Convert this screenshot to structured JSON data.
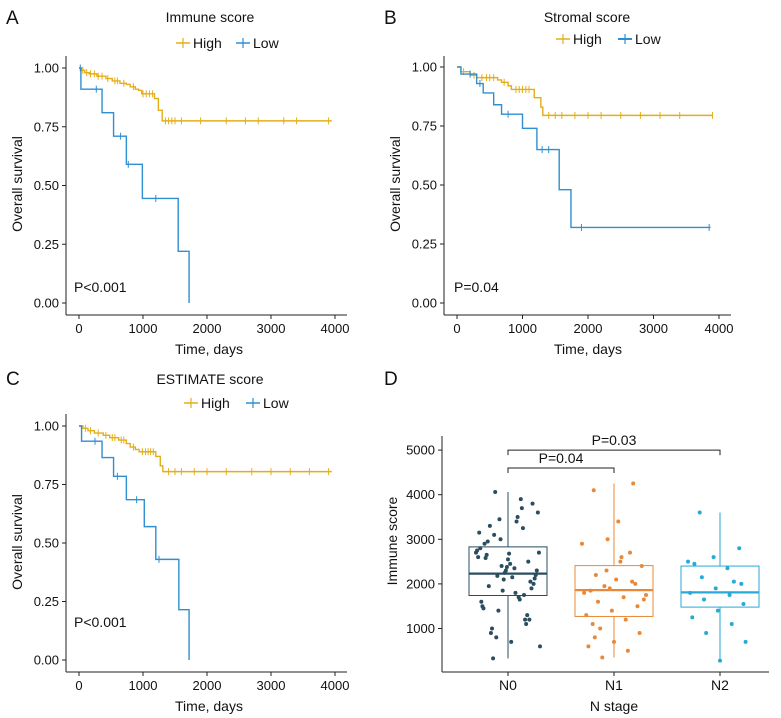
{
  "colors": {
    "high": "#e5ad19",
    "low": "#2f8fd1",
    "n0": "#2a4d5f",
    "n1": "#e8893a",
    "n2": "#28a9d6",
    "axis": "#222222"
  },
  "legend_labels": {
    "high": "High",
    "low": "Low"
  },
  "chart_data": [
    {
      "panel": "A",
      "type": "line",
      "title": "Immune score",
      "xlabel": "Time, days",
      "ylabel": "Overall survival",
      "xlim": [
        0,
        4000
      ],
      "ylim": [
        0,
        1
      ],
      "x_ticks": [
        0,
        1000,
        2000,
        3000,
        4000
      ],
      "x_tick_labels": [
        "0",
        "1000",
        "2000",
        "3000",
        "4000"
      ],
      "y_ticks": [
        0,
        0.25,
        0.5,
        0.75,
        1
      ],
      "y_tick_labels": [
        "0.00",
        "0.25",
        "0.50",
        "0.75",
        "1.00"
      ],
      "annotation": "P<0.001",
      "series": [
        {
          "name": "High",
          "steps": [
            [
              0,
              1
            ],
            [
              40,
              0.99
            ],
            [
              90,
              0.98
            ],
            [
              160,
              0.975
            ],
            [
              280,
              0.965
            ],
            [
              420,
              0.955
            ],
            [
              520,
              0.945
            ],
            [
              640,
              0.935
            ],
            [
              740,
              0.93
            ],
            [
              800,
              0.92
            ],
            [
              880,
              0.91
            ],
            [
              930,
              0.905
            ],
            [
              980,
              0.89
            ],
            [
              1180,
              0.87
            ],
            [
              1240,
              0.82
            ],
            [
              1300,
              0.775
            ],
            [
              3950,
              0.775
            ]
          ],
          "censor_x": [
            60,
            120,
            180,
            240,
            300,
            360,
            450,
            560,
            600,
            700,
            850,
            1000,
            1050,
            1100,
            1150,
            1350,
            1400,
            1450,
            1500,
            1600,
            1900,
            2300,
            2600,
            2800,
            3200,
            3400,
            3900
          ]
        },
        {
          "name": "Low",
          "steps": [
            [
              0,
              1
            ],
            [
              30,
              0.91
            ],
            [
              360,
              0.81
            ],
            [
              540,
              0.71
            ],
            [
              740,
              0.59
            ],
            [
              990,
              0.445
            ],
            [
              1550,
              0.22
            ],
            [
              1720,
              0.0
            ]
          ],
          "censor_x": [
            20,
            270,
            650,
            770,
            1200
          ]
        }
      ]
    },
    {
      "panel": "B",
      "type": "line",
      "title": "Stromal score",
      "xlabel": "Time, days",
      "ylabel": "Overall survival",
      "xlim": [
        0,
        4000
      ],
      "ylim": [
        0,
        1
      ],
      "x_ticks": [
        0,
        1000,
        2000,
        3000,
        4000
      ],
      "x_tick_labels": [
        "0",
        "1000",
        "2000",
        "3000",
        "4000"
      ],
      "y_ticks": [
        0,
        0.25,
        0.5,
        0.75,
        1
      ],
      "y_tick_labels": [
        "0.00",
        "0.25",
        "0.50",
        "0.75",
        "1.00"
      ],
      "annotation": "P=0.04",
      "series": [
        {
          "name": "High",
          "steps": [
            [
              0,
              1
            ],
            [
              60,
              0.98
            ],
            [
              200,
              0.965
            ],
            [
              300,
              0.955
            ],
            [
              620,
              0.945
            ],
            [
              680,
              0.935
            ],
            [
              780,
              0.92
            ],
            [
              830,
              0.905
            ],
            [
              1180,
              0.87
            ],
            [
              1280,
              0.83
            ],
            [
              1310,
              0.795
            ],
            [
              3900,
              0.795
            ]
          ],
          "censor_x": [
            100,
            260,
            380,
            450,
            500,
            560,
            720,
            900,
            950,
            1000,
            1050,
            1100,
            1400,
            1500,
            1600,
            1800,
            2000,
            2200,
            2500,
            2800,
            3100,
            3400,
            3900
          ]
        },
        {
          "name": "Low",
          "steps": [
            [
              0,
              1
            ],
            [
              60,
              0.97
            ],
            [
              300,
              0.93
            ],
            [
              400,
              0.89
            ],
            [
              560,
              0.84
            ],
            [
              680,
              0.8
            ],
            [
              1000,
              0.74
            ],
            [
              1220,
              0.65
            ],
            [
              1560,
              0.48
            ],
            [
              1740,
              0.32
            ],
            [
              3870,
              0.32
            ]
          ],
          "censor_x": [
            200,
            350,
            780,
            1300,
            1400,
            1900,
            3850
          ]
        }
      ]
    },
    {
      "panel": "C",
      "type": "line",
      "title": "ESTIMATE score",
      "xlabel": "Time, days",
      "ylabel": "Overall survival",
      "xlim": [
        0,
        4000
      ],
      "ylim": [
        0,
        1
      ],
      "x_ticks": [
        0,
        1000,
        2000,
        3000,
        4000
      ],
      "x_tick_labels": [
        "0",
        "1000",
        "2000",
        "3000",
        "4000"
      ],
      "y_ticks": [
        0,
        0.25,
        0.5,
        0.75,
        1
      ],
      "y_tick_labels": [
        "0.00",
        "0.25",
        "0.50",
        "0.75",
        "1.00"
      ],
      "annotation": "P<0.001",
      "series": [
        {
          "name": "High",
          "steps": [
            [
              0,
              1
            ],
            [
              60,
              0.99
            ],
            [
              140,
              0.98
            ],
            [
              240,
              0.97
            ],
            [
              380,
              0.96
            ],
            [
              480,
              0.95
            ],
            [
              620,
              0.94
            ],
            [
              740,
              0.925
            ],
            [
              800,
              0.91
            ],
            [
              880,
              0.9
            ],
            [
              940,
              0.89
            ],
            [
              1200,
              0.87
            ],
            [
              1270,
              0.83
            ],
            [
              1310,
              0.805
            ],
            [
              3950,
              0.805
            ]
          ],
          "censor_x": [
            100,
            180,
            300,
            420,
            520,
            560,
            660,
            700,
            850,
            990,
            1040,
            1080,
            1120,
            1160,
            1400,
            1500,
            1600,
            1800,
            2000,
            2300,
            2700,
            3000,
            3300,
            3600,
            3900
          ]
        },
        {
          "name": "Low",
          "steps": [
            [
              0,
              1
            ],
            [
              40,
              0.935
            ],
            [
              360,
              0.865
            ],
            [
              540,
              0.785
            ],
            [
              740,
              0.685
            ],
            [
              1020,
              0.57
            ],
            [
              1200,
              0.43
            ],
            [
              1560,
              0.215
            ],
            [
              1720,
              0.0
            ]
          ],
          "censor_x": [
            250,
            600,
            900,
            1250
          ]
        }
      ]
    },
    {
      "panel": "D",
      "type": "box",
      "title": "",
      "xlabel": "N stage",
      "ylabel": "Immune score",
      "ylim": [
        0,
        5200
      ],
      "y_ticks": [
        1000,
        2000,
        3000,
        4000,
        5000
      ],
      "y_tick_labels": [
        "1000",
        "2000",
        "3000",
        "4000",
        "5000"
      ],
      "categories": [
        "N0",
        "N1",
        "N2"
      ],
      "boxes": [
        {
          "name": "N0",
          "min": 330,
          "q1": 1740,
          "median": 2230,
          "q3": 2830,
          "max": 4060
        },
        {
          "name": "N1",
          "min": 350,
          "q1": 1270,
          "median": 1860,
          "q3": 2410,
          "max": 4250
        },
        {
          "name": "N2",
          "min": 280,
          "q1": 1480,
          "median": 1810,
          "q3": 2400,
          "max": 3600
        }
      ],
      "points": [
        [
          2950,
          1300,
          2400,
          2700,
          1800,
          3300,
          1200,
          2100,
          2600,
          3500,
          1000,
          1900,
          2300,
          2800,
          1650,
          3100,
          2000,
          2550,
          1500,
          3700,
          800,
          2200,
          2450,
          2900,
          1750,
          1400,
          3600,
          2150,
          2650,
          1100,
          3000,
          600,
          2350,
          1950,
          2500,
          1850,
          2750,
          3400,
          900,
          2050,
          2250,
          3150,
          1700,
          330,
          3800,
          2380,
          1600,
          3900,
          4060,
          2120,
          2680,
          1450,
          3250,
          2180,
          2300,
          700,
          2580,
          1200,
          3450,
          2700
        ],
        [
          4100,
          4250,
          3000,
          2900,
          2600,
          2200,
          2000,
          1900,
          1800,
          1700,
          1600,
          1500,
          1400,
          1300,
          1200,
          1000,
          900,
          700,
          600,
          500,
          350,
          2400,
          2100,
          1850,
          2700,
          1950,
          1650,
          3400,
          1100,
          2050,
          2300,
          1750,
          2500,
          800
        ],
        [
          3600,
          2800,
          2600,
          2500,
          2350,
          2150,
          2000,
          1900,
          1800,
          1750,
          1650,
          1550,
          1400,
          1250,
          1100,
          900,
          700,
          280,
          2450,
          2050
        ]
      ],
      "comparisons": [
        {
          "label": "P=0.04",
          "from": "N0",
          "to": "N1",
          "y": 4600
        },
        {
          "label": "P=0.03",
          "from": "N0",
          "to": "N2",
          "y": 5000
        }
      ]
    }
  ]
}
